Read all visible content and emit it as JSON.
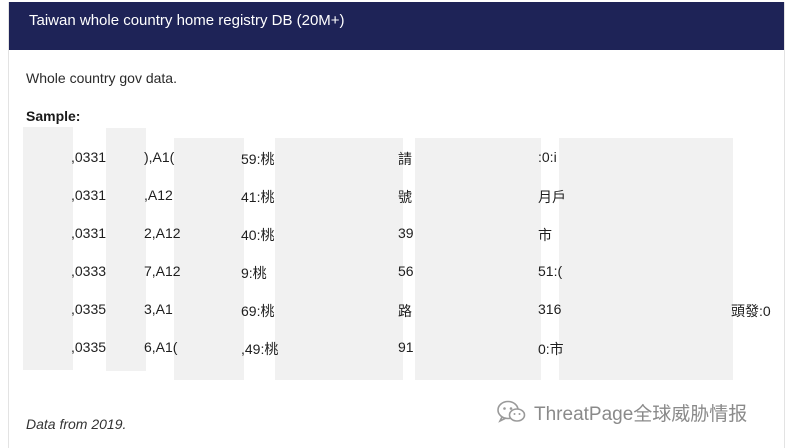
{
  "header": {
    "title": "Taiwan whole country home registry DB (20M+)"
  },
  "description": "Whole country gov data.",
  "sample_label": "Sample:",
  "sample_fragments": [
    [
      ",0331",
      "),A1(",
      "59:桃",
      "請",
      ":0:i"
    ],
    [
      ",0331",
      ",A12",
      "41:桃",
      "號",
      "月戶"
    ],
    [
      ",0331",
      "2,A12",
      "40:桃",
      "39",
      "市"
    ],
    [
      ",0333",
      "7,A12",
      "9:桃",
      "56",
      "51:("
    ],
    [
      ",0335",
      "3,A1",
      "69:桃",
      "路",
      "316",
      "頭發:0"
    ],
    [
      ",0335",
      "6,A1(",
      ",49:桃",
      "91",
      "0:市"
    ]
  ],
  "footer_note": "Data from 2019.",
  "watermark": {
    "text": "ThreatPage全球威胁情报",
    "icon": "wechat-icon",
    "color": "#8a8a8a"
  },
  "colors": {
    "header_bg": "#1e2357",
    "redaction": "#f1f1f1"
  }
}
